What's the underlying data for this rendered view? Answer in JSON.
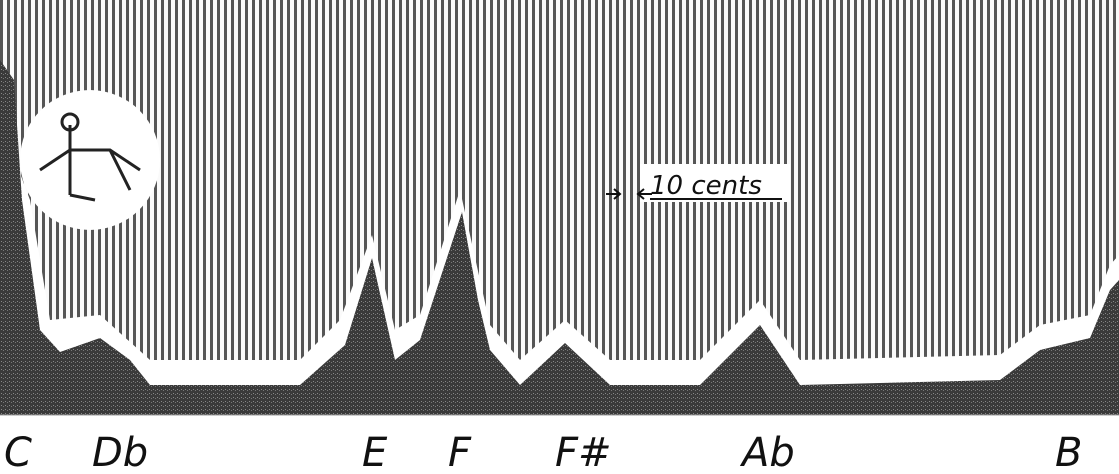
{
  "notes": [
    "C",
    "Db",
    "E",
    "F",
    "F#",
    "Ab",
    "B"
  ],
  "annotation": "10 cents"
}
